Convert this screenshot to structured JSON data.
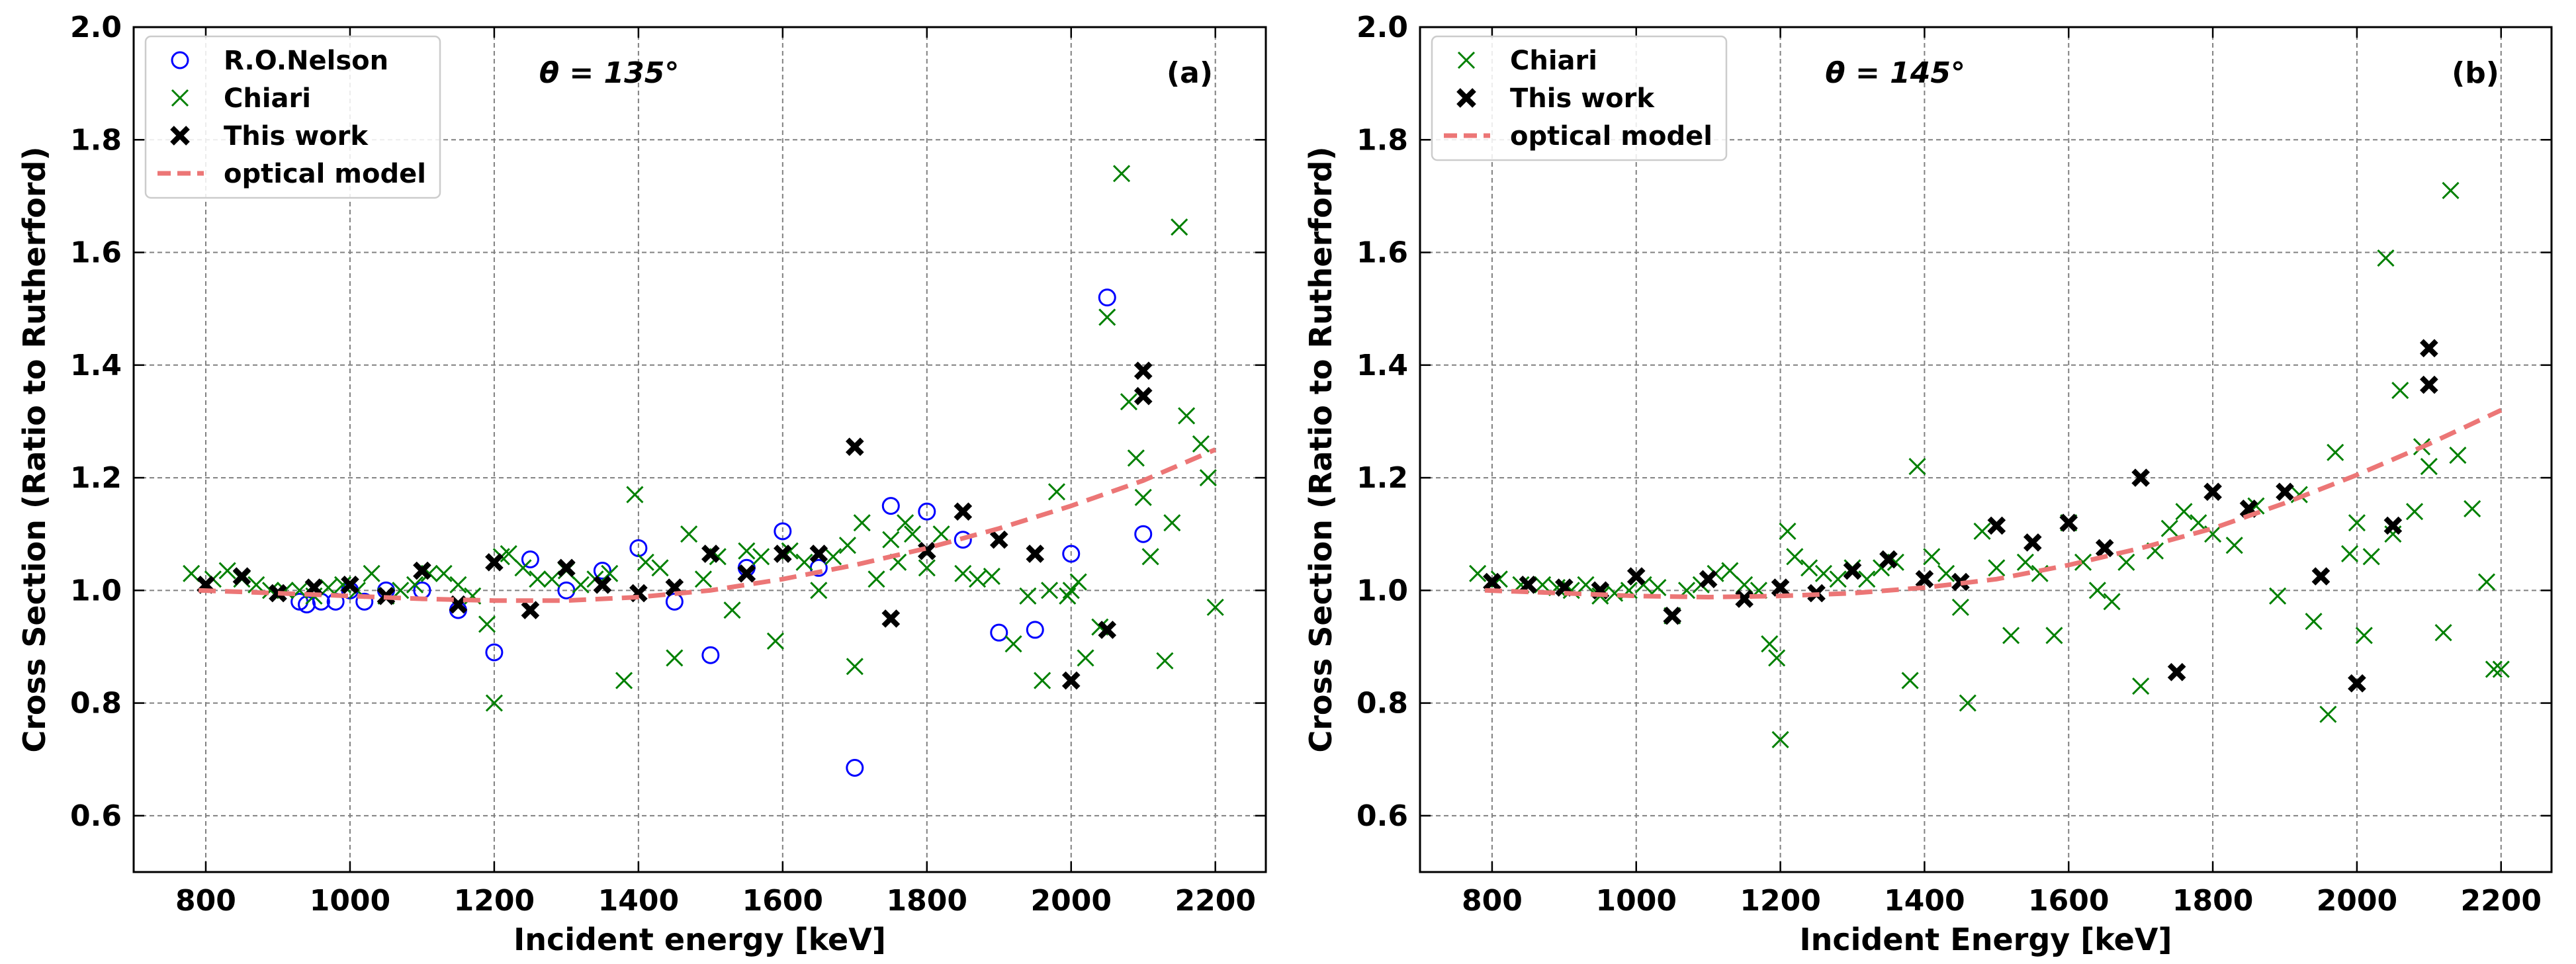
{
  "colors": {
    "nelson": "#0000ff",
    "chiari": "#008000",
    "this_work": "#000000",
    "model": "#ec7676",
    "grid": "#808080"
  },
  "chart_data": [
    {
      "type": "scatter",
      "panel_label": "(a)",
      "angle_label": "θ = 135°",
      "xlabel": "Incident energy [keV]",
      "ylabel": "Cross Section (Ratio to Rutherford)",
      "xlim": [
        700,
        2270
      ],
      "ylim": [
        0.5,
        2.0
      ],
      "xticks": [
        "800",
        "1000",
        "1200",
        "1400",
        "1600",
        "1800",
        "2000",
        "2200"
      ],
      "yticks": [
        "0.6",
        "0.8",
        "1.0",
        "1.2",
        "1.4",
        "1.6",
        "1.8",
        "2.0"
      ],
      "grid": true,
      "legend_position": "top-left",
      "legend": [
        "R.O.Nelson",
        "Chiari",
        "This work",
        "optical model"
      ],
      "series": [
        {
          "name": "R.O.Nelson",
          "marker": "circle",
          "color": "#0000ff",
          "x": [
            930,
            940,
            960,
            980,
            1000,
            1020,
            1050,
            1100,
            1150,
            1200,
            1250,
            1300,
            1350,
            1400,
            1450,
            1500,
            1550,
            1600,
            1650,
            1700,
            1750,
            1800,
            1850,
            1900,
            1950,
            2000,
            2050,
            2100
          ],
          "y": [
            0.98,
            0.975,
            0.98,
            0.98,
            1.0,
            0.98,
            1.0,
            1.0,
            0.965,
            0.89,
            1.055,
            1.0,
            1.035,
            1.075,
            0.98,
            0.885,
            1.04,
            1.105,
            1.04,
            0.685,
            1.15,
            1.14,
            1.09,
            0.925,
            0.93,
            1.065,
            1.52,
            1.1
          ]
        },
        {
          "name": "Chiari",
          "marker": "x",
          "color": "#008000",
          "x": [
            780,
            810,
            830,
            850,
            870,
            890,
            910,
            930,
            950,
            970,
            990,
            1010,
            1030,
            1050,
            1070,
            1090,
            1110,
            1130,
            1150,
            1170,
            1190,
            1200,
            1210,
            1220,
            1240,
            1260,
            1280,
            1300,
            1320,
            1340,
            1360,
            1380,
            1395,
            1410,
            1430,
            1450,
            1470,
            1490,
            1510,
            1530,
            1550,
            1570,
            1590,
            1610,
            1630,
            1650,
            1670,
            1690,
            1700,
            1710,
            1730,
            1750,
            1760,
            1770,
            1780,
            1800,
            1820,
            1850,
            1870,
            1890,
            1920,
            1940,
            1960,
            1970,
            1980,
            1995,
            2000,
            2010,
            2020,
            2040,
            2050,
            2070,
            2080,
            2090,
            2100,
            2110,
            2130,
            2140,
            2150,
            2160,
            2180,
            2190,
            2200
          ],
          "y": [
            1.03,
            1.02,
            1.035,
            1.02,
            1.01,
            1.0,
            1.0,
            1.0,
            0.99,
            1.005,
            1.01,
            1.0,
            1.03,
            0.99,
            1.0,
            1.01,
            1.03,
            1.03,
            1.01,
            0.99,
            0.94,
            0.8,
            1.06,
            1.065,
            1.04,
            1.02,
            1.02,
            1.035,
            1.01,
            1.02,
            1.03,
            0.84,
            1.17,
            1.05,
            1.04,
            0.88,
            1.1,
            1.02,
            1.06,
            0.965,
            1.07,
            1.06,
            0.91,
            1.07,
            1.05,
            1.0,
            1.06,
            1.08,
            0.865,
            1.12,
            1.02,
            1.09,
            1.05,
            1.12,
            1.1,
            1.04,
            1.1,
            1.03,
            1.02,
            1.025,
            0.905,
            0.99,
            0.84,
            1.0,
            1.175,
            0.99,
            1.0,
            1.015,
            0.88,
            0.935,
            1.485,
            1.74,
            1.335,
            1.235,
            1.165,
            1.06,
            0.875,
            1.12,
            1.645,
            1.31,
            1.26,
            1.2,
            0.97
          ]
        },
        {
          "name": "This work",
          "marker": "thick-x",
          "color": "#000000",
          "x": [
            800,
            850,
            900,
            950,
            1000,
            1050,
            1100,
            1150,
            1200,
            1250,
            1300,
            1350,
            1400,
            1450,
            1500,
            1550,
            1600,
            1650,
            1700,
            1750,
            1800,
            1850,
            1900,
            1950,
            2000,
            2050,
            2100,
            2100
          ],
          "y": [
            1.01,
            1.025,
            0.995,
            1.005,
            1.01,
            0.99,
            1.035,
            0.975,
            1.05,
            0.965,
            1.04,
            1.01,
            0.995,
            1.005,
            1.065,
            1.03,
            1.065,
            1.065,
            1.255,
            0.95,
            1.07,
            1.14,
            1.09,
            1.065,
            0.84,
            0.93,
            1.39,
            1.345
          ]
        },
        {
          "name": "optical model",
          "type": "line",
          "style": "dashed",
          "color": "#ec7676",
          "x": [
            790,
            900,
            1000,
            1100,
            1200,
            1300,
            1400,
            1500,
            1600,
            1700,
            1800,
            1900,
            2000,
            2100,
            2200
          ],
          "y": [
            1.0,
            0.995,
            0.99,
            0.985,
            0.982,
            0.982,
            0.988,
            1.0,
            1.02,
            1.045,
            1.075,
            1.11,
            1.15,
            1.195,
            1.25
          ]
        }
      ]
    },
    {
      "type": "scatter",
      "panel_label": "(b)",
      "angle_label": "θ = 145°",
      "xlabel": "Incident Energy [keV]",
      "ylabel": "Cross Section (Ratio to Rutherford)",
      "xlim": [
        700,
        2270
      ],
      "ylim": [
        0.5,
        2.0
      ],
      "xticks": [
        "800",
        "1000",
        "1200",
        "1400",
        "1600",
        "1800",
        "2000",
        "2200"
      ],
      "yticks": [
        "0.6",
        "0.8",
        "1.0",
        "1.2",
        "1.4",
        "1.6",
        "1.8",
        "2.0"
      ],
      "grid": true,
      "legend_position": "top-left",
      "legend": [
        "Chiari",
        "This work",
        "optical model"
      ],
      "series": [
        {
          "name": "Chiari",
          "marker": "x",
          "color": "#008000",
          "x": [
            780,
            810,
            840,
            870,
            890,
            910,
            930,
            950,
            970,
            990,
            1010,
            1030,
            1050,
            1070,
            1090,
            1110,
            1130,
            1150,
            1170,
            1185,
            1195,
            1200,
            1210,
            1220,
            1240,
            1260,
            1280,
            1300,
            1320,
            1340,
            1360,
            1380,
            1390,
            1410,
            1430,
            1450,
            1460,
            1480,
            1500,
            1520,
            1540,
            1560,
            1580,
            1600,
            1620,
            1640,
            1660,
            1680,
            1700,
            1720,
            1740,
            1760,
            1780,
            1800,
            1830,
            1860,
            1890,
            1920,
            1940,
            1960,
            1970,
            1990,
            2000,
            2010,
            2020,
            2040,
            2050,
            2060,
            2080,
            2090,
            2100,
            2120,
            2130,
            2140,
            2160,
            2180,
            2190,
            2200
          ],
          "y": [
            1.03,
            1.02,
            1.01,
            1.01,
            1.005,
            1.0,
            1.01,
            0.99,
            0.995,
            1.0,
            1.01,
            1.005,
            0.955,
            1.0,
            1.01,
            1.03,
            1.035,
            1.01,
            1.0,
            0.905,
            0.88,
            0.735,
            1.105,
            1.06,
            1.04,
            1.03,
            1.02,
            1.04,
            1.02,
            1.04,
            1.05,
            0.84,
            1.22,
            1.06,
            1.03,
            0.97,
            0.8,
            1.105,
            1.04,
            0.92,
            1.05,
            1.03,
            0.92,
            1.12,
            1.05,
            1.0,
            0.98,
            1.05,
            0.83,
            1.07,
            1.11,
            1.14,
            1.12,
            1.1,
            1.08,
            1.15,
            0.99,
            1.17,
            0.945,
            0.78,
            1.245,
            1.065,
            1.12,
            0.92,
            1.06,
            1.59,
            1.1,
            1.355,
            1.14,
            1.255,
            1.22,
            0.925,
            1.71,
            1.24,
            1.145,
            1.015,
            0.86,
            0.86
          ]
        },
        {
          "name": "This work",
          "marker": "thick-x",
          "color": "#000000",
          "x": [
            800,
            850,
            900,
            950,
            1000,
            1050,
            1100,
            1150,
            1200,
            1250,
            1300,
            1350,
            1400,
            1450,
            1500,
            1550,
            1600,
            1650,
            1700,
            1750,
            1800,
            1850,
            1900,
            1950,
            2000,
            2050,
            2100,
            2100
          ],
          "y": [
            1.015,
            1.01,
            1.005,
            1.0,
            1.025,
            0.955,
            1.02,
            0.985,
            1.005,
            0.995,
            1.035,
            1.055,
            1.02,
            1.015,
            1.115,
            1.085,
            1.12,
            1.075,
            1.2,
            0.855,
            1.175,
            1.145,
            1.175,
            1.025,
            0.835,
            1.115,
            1.43,
            1.365
          ]
        },
        {
          "name": "optical model",
          "type": "line",
          "style": "dashed",
          "color": "#ec7676",
          "x": [
            790,
            900,
            1000,
            1100,
            1200,
            1300,
            1400,
            1500,
            1600,
            1700,
            1800,
            1900,
            2000,
            2100,
            2200
          ],
          "y": [
            1.0,
            0.995,
            0.99,
            0.988,
            0.99,
            0.995,
            1.005,
            1.02,
            1.045,
            1.075,
            1.11,
            1.155,
            1.205,
            1.26,
            1.32
          ]
        }
      ]
    }
  ]
}
